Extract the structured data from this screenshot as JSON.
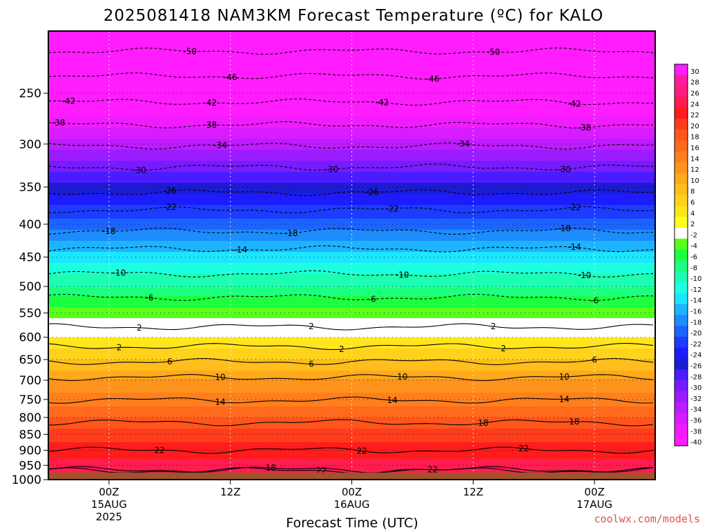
{
  "chart_data": {
    "type": "heatmap",
    "title": "2025081418 NAM3KM Forecast Temperature (ºC) for KALO",
    "xlabel": "Forecast Time (UTC)",
    "ylabel": "",
    "yscale": "log",
    "ylim": [
      1000,
      200
    ],
    "y_ticks": [
      250,
      300,
      350,
      400,
      450,
      500,
      550,
      600,
      650,
      700,
      750,
      800,
      850,
      900,
      950,
      1000
    ],
    "x_ticks": [
      {
        "hour": 6,
        "label": "00Z",
        "label2": "15AUG",
        "label3": "2025"
      },
      {
        "hour": 18,
        "label": "12Z",
        "label2": "",
        "label3": ""
      },
      {
        "hour": 30,
        "label": "00Z",
        "label2": "16AUG",
        "label3": ""
      },
      {
        "hour": 42,
        "label": "12Z",
        "label2": "",
        "label3": ""
      },
      {
        "hour": 54,
        "label": "00Z",
        "label2": "17AUG",
        "label3": ""
      }
    ],
    "xlim": [
      0,
      60
    ],
    "ground_pressure_hpa": 975,
    "grid": true,
    "colorbar": {
      "position": "right",
      "labels": [
        "30",
        "28",
        "26",
        "24",
        "22",
        "20",
        "18",
        "16",
        "14",
        "12",
        "10",
        "8",
        "6",
        "4",
        "2",
        "-2",
        "-4",
        "-6",
        "-8",
        "-10",
        "-12",
        "-14",
        "-16",
        "-18",
        "-20",
        "-22",
        "-24",
        "-26",
        "-28",
        "-30",
        "-32",
        "-34",
        "-36",
        "-38",
        "-40"
      ],
      "colors": [
        "#ff1cff",
        "#ff1ca0",
        "#ff1c80",
        "#ff1c50",
        "#ff1c1c",
        "#ff3c1c",
        "#ff551c",
        "#ff6a1c",
        "#ff7f1c",
        "#ff941c",
        "#ffa91c",
        "#ffbe1c",
        "#ffd21c",
        "#ffe61c",
        "#ffff1c",
        "#ffffff",
        "#59ff1c",
        "#1cff40",
        "#1cff80",
        "#1cffb0",
        "#1cffe0",
        "#1ce6ff",
        "#1cb4ff",
        "#1c8cff",
        "#1c64ff",
        "#1c3cff",
        "#1c1cff",
        "#1c1cd2",
        "#4a1cff",
        "#781cff",
        "#9b1cff",
        "#be1cff",
        "#d81cff",
        "#f01cff",
        "#ff1cff"
      ]
    },
    "profile": [
      {
        "p": 1000,
        "t": 25
      },
      {
        "p": 950,
        "t": 23
      },
      {
        "p": 900,
        "t": 21
      },
      {
        "p": 850,
        "t": 19
      },
      {
        "p": 800,
        "t": 16
      },
      {
        "p": 750,
        "t": 13
      },
      {
        "p": 700,
        "t": 10
      },
      {
        "p": 650,
        "t": 6
      },
      {
        "p": 600,
        "t": 2
      },
      {
        "p": 550,
        "t": -3
      },
      {
        "p": 500,
        "t": -8
      },
      {
        "p": 450,
        "t": -13
      },
      {
        "p": 400,
        "t": -19
      },
      {
        "p": 350,
        "t": -25
      },
      {
        "p": 300,
        "t": -33
      },
      {
        "p": 250,
        "t": -42
      },
      {
        "p": 200,
        "t": -52
      }
    ],
    "contours": [
      {
        "level": "-50",
        "p": 215,
        "label_hours": [
          14,
          44
        ]
      },
      {
        "level": "-46",
        "p": 235,
        "label_hours": [
          18,
          38
        ]
      },
      {
        "level": "-42",
        "p": 258,
        "label_hours": [
          2,
          16,
          33,
          52
        ]
      },
      {
        "level": "-38",
        "p": 280,
        "label_hours": [
          1,
          16,
          53
        ]
      },
      {
        "level": "-34",
        "p": 302,
        "label_hours": [
          17,
          41
        ]
      },
      {
        "level": "-30",
        "p": 326,
        "label_hours": [
          9,
          28,
          51
        ]
      },
      {
        "level": "-26",
        "p": 357,
        "label_hours": [
          12,
          32
        ]
      },
      {
        "level": "-22",
        "p": 380,
        "label_hours": [
          12,
          34,
          52
        ]
      },
      {
        "level": "-18",
        "p": 410,
        "label_hours": [
          6,
          24,
          51
        ]
      },
      {
        "level": "-14",
        "p": 437,
        "label_hours": [
          19,
          52
        ]
      },
      {
        "level": "-10",
        "p": 478,
        "label_hours": [
          7,
          35,
          53
        ]
      },
      {
        "level": "-6",
        "p": 520,
        "label_hours": [
          10,
          32,
          54
        ]
      },
      {
        "level": "2",
        "p": 578,
        "label_hours": [
          9,
          26,
          44
        ]
      },
      {
        "level": "2",
        "p": 620,
        "label_hours": [
          7,
          29,
          45
        ]
      },
      {
        "level": "6",
        "p": 655,
        "label_hours": [
          12,
          26,
          54
        ]
      },
      {
        "level": "10",
        "p": 693,
        "label_hours": [
          17,
          35,
          51
        ]
      },
      {
        "level": "14",
        "p": 752,
        "label_hours": [
          17,
          34,
          51
        ]
      },
      {
        "level": "18",
        "p": 815,
        "label_hours": [
          43,
          52
        ]
      },
      {
        "level": "22",
        "p": 900,
        "label_hours": [
          11,
          31,
          47
        ]
      },
      {
        "level": "18",
        "p": 965,
        "label_hours": [
          22
        ]
      },
      {
        "level": "22",
        "p": 968,
        "label_hours": [
          27,
          38
        ]
      }
    ]
  },
  "watermark": "coolwx.com/models"
}
